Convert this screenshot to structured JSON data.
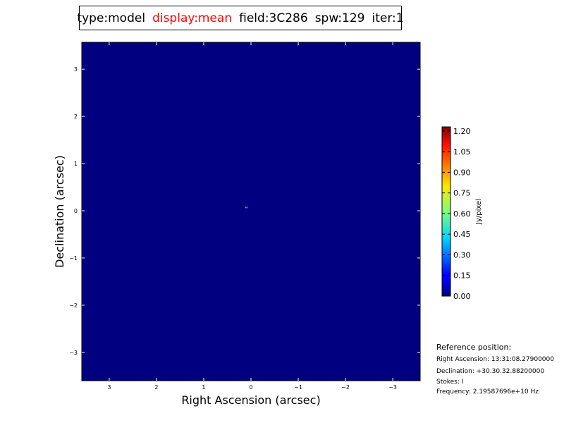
{
  "header": {
    "type": "type:model",
    "display": "display:mean",
    "field": "field:3C286",
    "spw": "spw:129",
    "iter": "iter:1",
    "display_color": "#ff0000"
  },
  "chart_data": {
    "type": "heatmap",
    "xlabel": "Right Ascension (arcsec)",
    "ylabel": "Declination (arcsec)",
    "xlim": [
      3.58,
      -3.58
    ],
    "ylim": [
      -3.6,
      3.57
    ],
    "xticks": [
      3,
      2,
      1,
      0,
      -1,
      -2,
      -3
    ],
    "xtick_labels": [
      "3",
      "2",
      "1",
      "0",
      "−1",
      "−2",
      "−3"
    ],
    "yticks": [
      3,
      2,
      1,
      0,
      -1,
      -2,
      -3
    ],
    "ytick_labels": [
      "3",
      "2",
      "1",
      "0",
      "−1",
      "−2",
      "−3"
    ],
    "colormap": "jet",
    "background_value": 0.0,
    "pixels": [
      {
        "x": 0.11,
        "y": 0.07,
        "value": 0.95
      },
      {
        "x": 0.08,
        "y": 0.07,
        "value": 0.3
      }
    ],
    "colorbar": {
      "label": "Jy/pixel",
      "range": [
        0.0,
        1.23
      ],
      "ticks": [
        0.0,
        0.15,
        0.3,
        0.45,
        0.6,
        0.75,
        0.9,
        1.05,
        1.2
      ],
      "tick_labels": [
        "0.00",
        "0.15",
        "0.30",
        "0.45",
        "0.60",
        "0.75",
        "0.90",
        "1.05",
        "1.20"
      ]
    }
  },
  "reference": {
    "heading": "Reference position:",
    "ra": "Right Ascension: 13:31:08.27900000",
    "dec": "Declination: +30.30.32.88200000",
    "stokes": "Stokes: I",
    "frequency": "Frequency: 2.19587696e+10 Hz"
  }
}
